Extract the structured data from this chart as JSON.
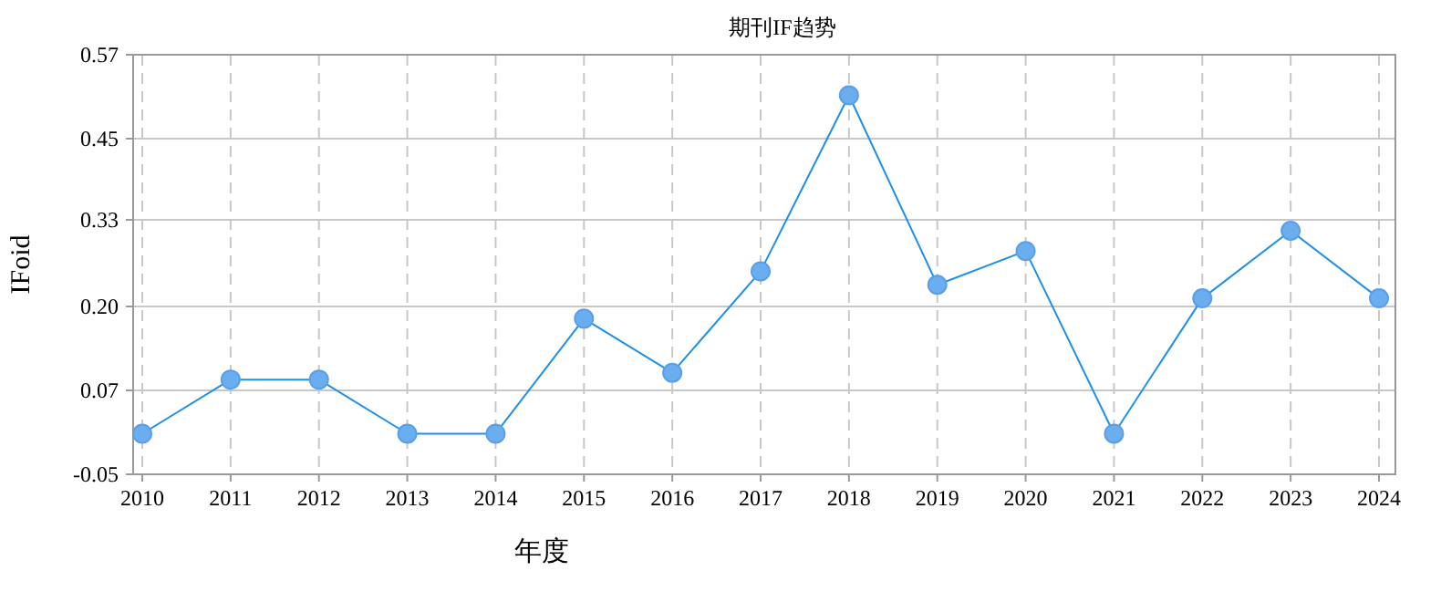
{
  "chart_data": {
    "type": "line",
    "title": "期刊IF趋势",
    "xlabel": "年度",
    "ylabel": "IFoid",
    "categories": [
      "2010",
      "2011",
      "2012",
      "2013",
      "2014",
      "2015",
      "2016",
      "2017",
      "2018",
      "2019",
      "2020",
      "2021",
      "2022",
      "2023",
      "2024"
    ],
    "series": [
      {
        "color": "#1e90e8",
        "values": [
          0.01,
          0.09,
          0.09,
          0.01,
          0.01,
          0.18,
          0.1,
          0.25,
          0.51,
          0.23,
          0.28,
          0.01,
          0.21,
          0.31,
          0.21
        ]
      }
    ],
    "ylim": [
      -0.05,
      0.57
    ],
    "yticks": [
      -0.05,
      {
        "value": 0.074,
        "label": "0.07"
      },
      {
        "value": 0.198,
        "label": "0.20"
      },
      {
        "value": 0.326,
        "label": "0.33"
      },
      {
        "value": 0.446,
        "label": "0.45"
      },
      0.57
    ],
    "grid": true,
    "marker": "circle",
    "line_style": "solid"
  }
}
